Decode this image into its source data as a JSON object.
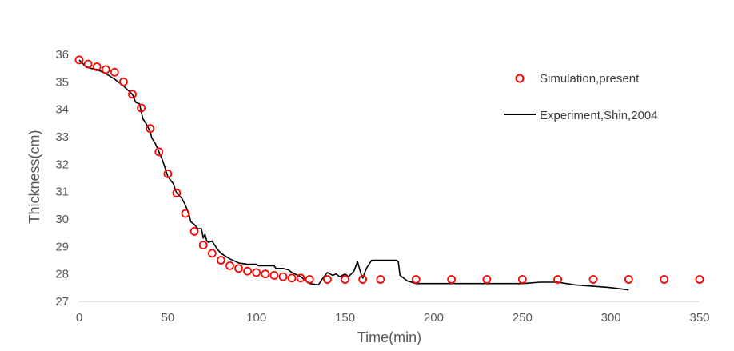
{
  "chart_data": {
    "type": "scatter",
    "xlabel": "Time(min)",
    "ylabel": "Thickness(cm)",
    "xlim": [
      0,
      350
    ],
    "ylim": [
      27,
      36
    ],
    "xticks": [
      0,
      50,
      100,
      150,
      200,
      250,
      300,
      350
    ],
    "yticks": [
      27,
      28,
      29,
      30,
      31,
      32,
      33,
      34,
      35,
      36
    ],
    "grid": false,
    "legend_position": "top-right",
    "colors": {
      "simulation": "#ff0000",
      "experiment": "#000000",
      "axis": "#bfbfbf",
      "text": "#595959"
    },
    "series": [
      {
        "name": "Simulation,present",
        "type": "scatter",
        "x": [
          0,
          5,
          10,
          15,
          20,
          25,
          30,
          35,
          40,
          45,
          50,
          55,
          60,
          65,
          70,
          75,
          80,
          85,
          90,
          95,
          100,
          105,
          110,
          115,
          120,
          125,
          130,
          140,
          150,
          160,
          170,
          190,
          210,
          230,
          250,
          270,
          290,
          310,
          330,
          350
        ],
        "y": [
          35.8,
          35.65,
          35.55,
          35.45,
          35.35,
          35.0,
          34.55,
          34.05,
          33.3,
          32.45,
          31.65,
          30.95,
          30.2,
          29.55,
          29.05,
          28.75,
          28.5,
          28.3,
          28.2,
          28.1,
          28.05,
          28.0,
          27.95,
          27.9,
          27.85,
          27.85,
          27.8,
          27.8,
          27.8,
          27.8,
          27.8,
          27.8,
          27.8,
          27.8,
          27.8,
          27.8,
          27.8,
          27.8,
          27.8,
          27.8
        ]
      },
      {
        "name": "Experiment,Shin,2004",
        "type": "line",
        "x": [
          0,
          3,
          6,
          10,
          15,
          20,
          25,
          30,
          32,
          34,
          36,
          38,
          40,
          41,
          43,
          45,
          47,
          50,
          53,
          55,
          58,
          60,
          62,
          63,
          65,
          67,
          69,
          70,
          71,
          72,
          73,
          75,
          78,
          80,
          85,
          90,
          95,
          100,
          101,
          105,
          110,
          111,
          115,
          118,
          120,
          125,
          130,
          135,
          137,
          140,
          143,
          145,
          147,
          150,
          152,
          155,
          157,
          159,
          160,
          162,
          165,
          170,
          175,
          179,
          180,
          181,
          185,
          190,
          200,
          210,
          220,
          230,
          240,
          250,
          260,
          270,
          280,
          290,
          300,
          310
        ],
        "y": [
          35.8,
          35.6,
          35.5,
          35.45,
          35.3,
          35.1,
          34.85,
          34.55,
          34.25,
          34.2,
          33.65,
          33.45,
          33.2,
          32.95,
          32.75,
          32.45,
          32.15,
          31.55,
          31.3,
          30.95,
          30.75,
          30.5,
          30.15,
          29.9,
          29.8,
          29.65,
          29.65,
          29.3,
          29.45,
          29.2,
          29.15,
          29.2,
          28.9,
          28.75,
          28.55,
          28.4,
          28.35,
          28.35,
          28.3,
          28.3,
          28.3,
          28.2,
          28.2,
          28.15,
          28.05,
          27.9,
          27.65,
          27.6,
          27.8,
          28.05,
          27.95,
          28.0,
          27.9,
          28.0,
          27.9,
          28.1,
          28.45,
          28.0,
          27.85,
          28.2,
          28.5,
          28.5,
          28.5,
          28.5,
          28.45,
          27.95,
          27.75,
          27.65,
          27.65,
          27.65,
          27.65,
          27.65,
          27.65,
          27.65,
          27.7,
          27.7,
          27.6,
          27.55,
          27.5,
          27.42
        ]
      }
    ]
  }
}
